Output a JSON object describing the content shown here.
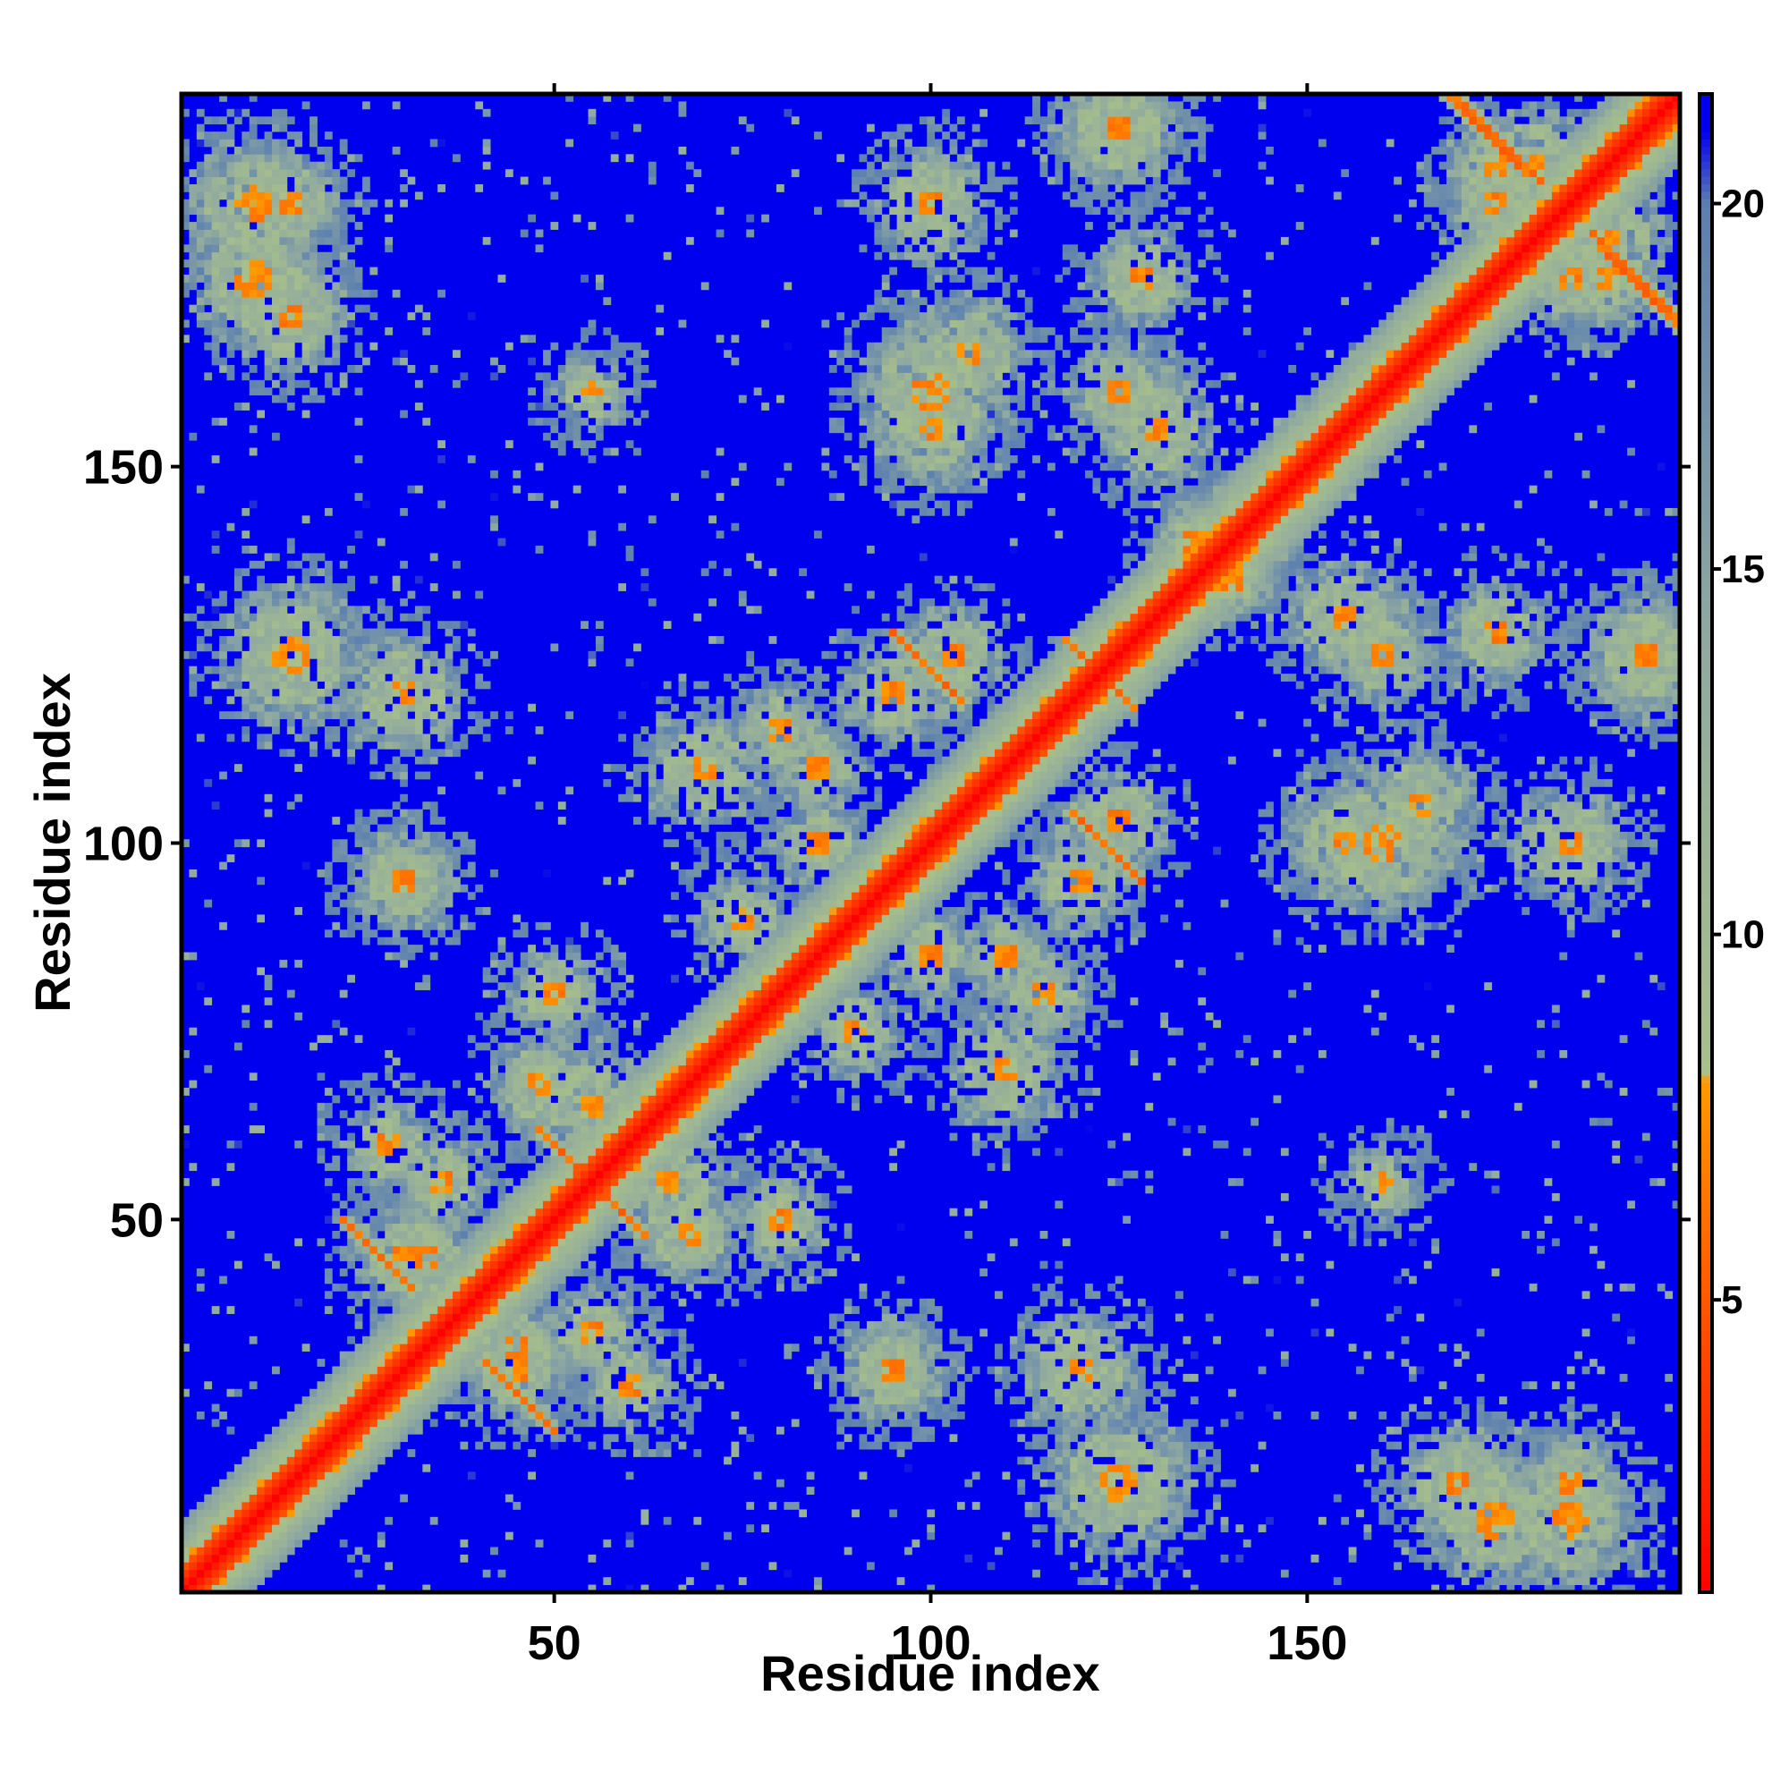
{
  "chart_data": {
    "type": "heatmap",
    "title": "",
    "xlabel": "Residue index",
    "ylabel": "Residue index",
    "n_residues": 199,
    "xlim": [
      1,
      199
    ],
    "ylim": [
      1,
      199
    ],
    "x_ticks": [
      50,
      100,
      150
    ],
    "y_ticks": [
      50,
      100,
      150
    ],
    "x_tick_labels": [
      "50",
      "100",
      "150"
    ],
    "y_tick_labels": [
      "50",
      "100",
      "150"
    ],
    "colorbar": {
      "range": [
        1,
        21.5
      ],
      "ticks": [
        5,
        10,
        15,
        20
      ],
      "tick_labels": [
        "5",
        "10",
        "15",
        "20"
      ],
      "stops": [
        {
          "value": 1,
          "color": "#ff0000"
        },
        {
          "value": 8,
          "color": "#ff9900"
        },
        {
          "value": 8.1,
          "color": "#a9c08a"
        },
        {
          "value": 14,
          "color": "#8fa9a0"
        },
        {
          "value": 20,
          "color": "#5b7fb0"
        },
        {
          "value": 21,
          "color": "#0000ee"
        }
      ]
    },
    "background_value": 21.5,
    "contacts": {
      "description_values": "distance map: values near 1 on diagonal, contact clusters 5-15, far pairs ~21",
      "diagonal_width": 3,
      "helix_band_width": 9,
      "clusters": [
        {
          "i": 10,
          "j": 175,
          "radius": 9
        },
        {
          "i": 15,
          "j": 185,
          "radius": 7
        },
        {
          "i": 28,
          "j": 60,
          "radius": 6
        },
        {
          "i": 30,
          "j": 95,
          "radius": 6
        },
        {
          "i": 30,
          "j": 120,
          "radius": 8
        },
        {
          "i": 33,
          "j": 45,
          "radius": 6
        },
        {
          "i": 45,
          "j": 30,
          "radius": 7
        },
        {
          "i": 48,
          "j": 68,
          "radius": 7
        },
        {
          "i": 50,
          "j": 80,
          "radius": 6
        },
        {
          "i": 55,
          "j": 35,
          "radius": 6
        },
        {
          "i": 55,
          "j": 160,
          "radius": 5
        },
        {
          "i": 65,
          "j": 55,
          "radius": 8
        },
        {
          "i": 70,
          "j": 110,
          "radius": 8
        },
        {
          "i": 75,
          "j": 90,
          "radius": 6
        },
        {
          "i": 85,
          "j": 100,
          "radius": 6
        },
        {
          "i": 95,
          "j": 30,
          "radius": 7
        },
        {
          "i": 100,
          "j": 160,
          "radius": 10
        },
        {
          "i": 100,
          "j": 185,
          "radius": 8
        },
        {
          "i": 103,
          "j": 125,
          "radius": 7
        },
        {
          "i": 110,
          "j": 85,
          "radius": 6
        },
        {
          "i": 115,
          "j": 80,
          "radius": 6
        },
        {
          "i": 120,
          "j": 95,
          "radius": 7
        },
        {
          "i": 125,
          "j": 15,
          "radius": 10
        },
        {
          "i": 125,
          "j": 195,
          "radius": 8
        },
        {
          "i": 128,
          "j": 175,
          "radius": 7
        },
        {
          "i": 130,
          "j": 155,
          "radius": 8
        },
        {
          "i": 135,
          "j": 140,
          "radius": 6
        },
        {
          "i": 155,
          "j": 100,
          "radius": 8
        },
        {
          "i": 160,
          "j": 125,
          "radius": 7
        },
        {
          "i": 165,
          "j": 105,
          "radius": 8
        },
        {
          "i": 170,
          "j": 15,
          "radius": 8
        },
        {
          "i": 175,
          "j": 185,
          "radius": 7
        },
        {
          "i": 180,
          "j": 190,
          "radius": 8
        },
        {
          "i": 185,
          "j": 10,
          "radius": 9
        },
        {
          "i": 190,
          "j": 175,
          "radius": 6
        },
        {
          "i": 195,
          "j": 125,
          "radius": 8
        }
      ],
      "anti_diagonal_strands": [
        {
          "i0": 22,
          "j0": 50,
          "length": 10
        },
        {
          "i0": 48,
          "j0": 62,
          "length": 8
        },
        {
          "i0": 95,
          "j0": 128,
          "length": 10
        },
        {
          "i0": 118,
          "j0": 127,
          "length": 8
        },
        {
          "i0": 170,
          "j0": 199,
          "length": 12
        },
        {
          "i0": 190,
          "j0": 178,
          "length": 10
        }
      ]
    }
  }
}
